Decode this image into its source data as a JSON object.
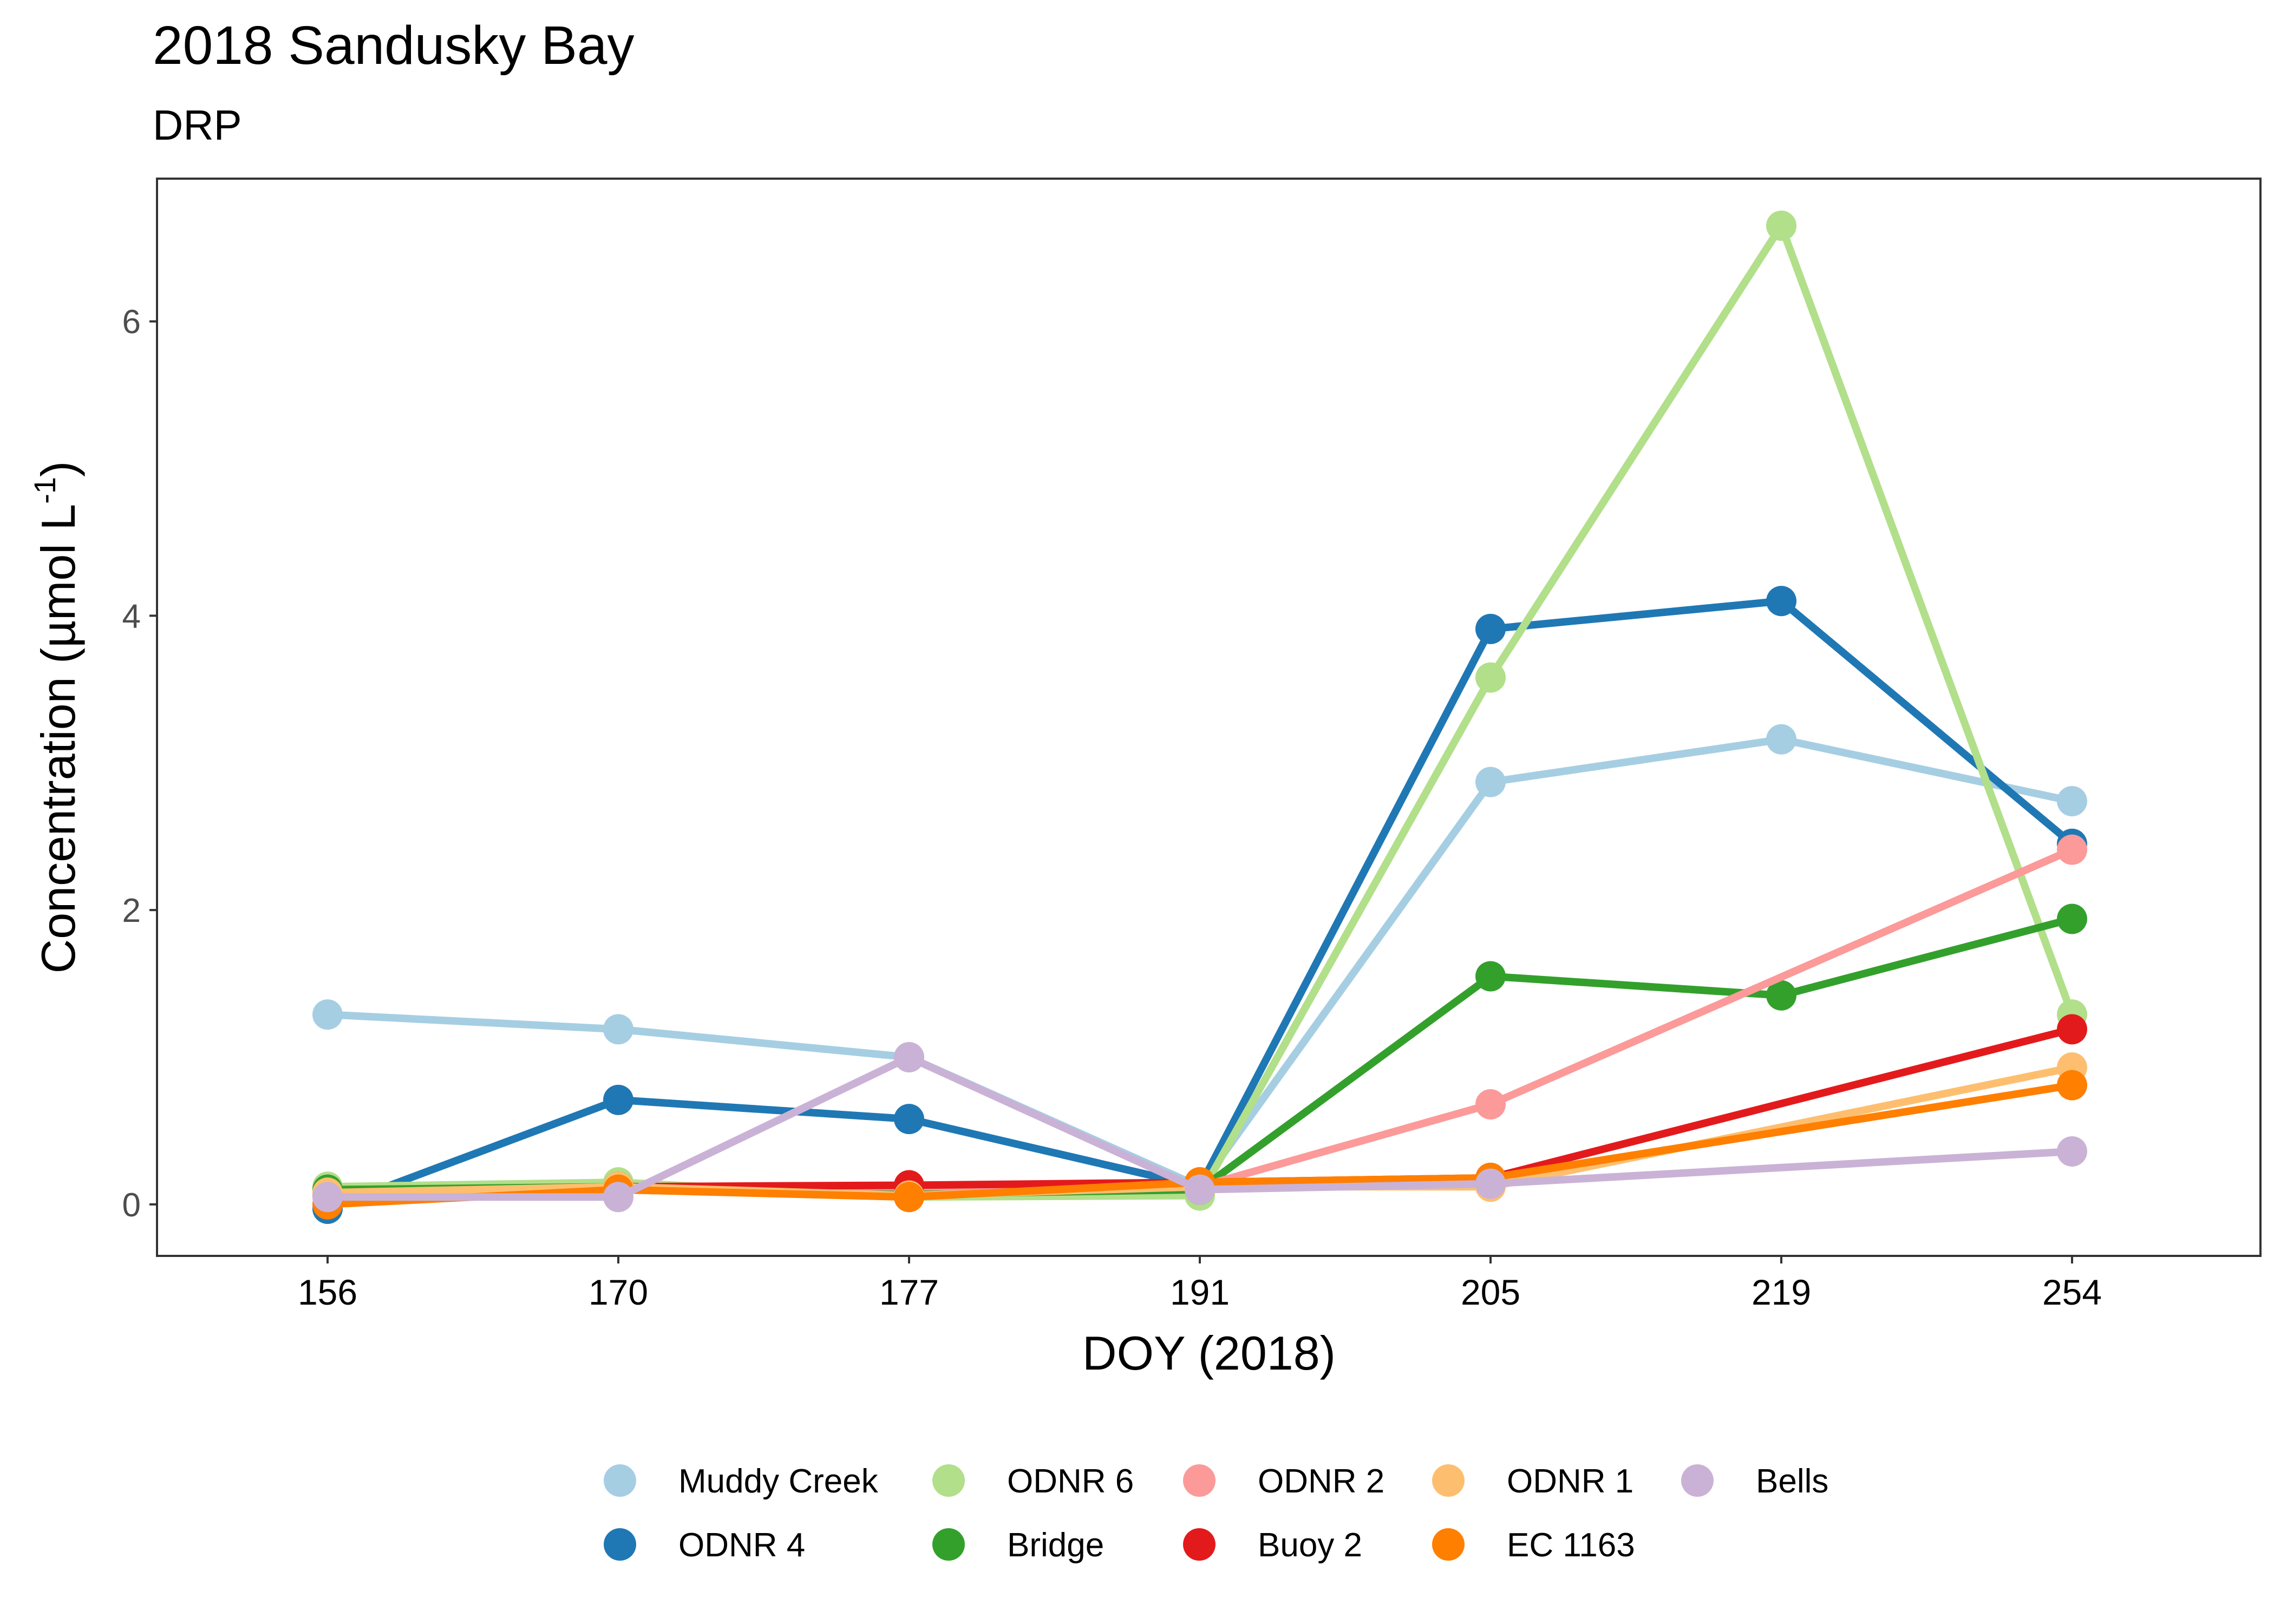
{
  "chart_data": {
    "type": "line",
    "title": "2018 Sandusky Bay",
    "subtitle": "DRP",
    "xlabel": "DOY (2018)",
    "ylabel": {
      "prefix": "Concentration (µmol L",
      "superscript": "-1",
      "suffix": ")"
    },
    "x": [
      "156",
      "170",
      "177",
      "191",
      "205",
      "219",
      "254"
    ],
    "ylim": [
      -0.35,
      6.97
    ],
    "yticks": [
      0,
      2,
      4,
      6
    ],
    "grid": false,
    "legend_position": "bottom",
    "series": [
      {
        "name": "Muddy Creek",
        "color": "#A6CEE3",
        "values": [
          1.29,
          1.19,
          1.0,
          0.12,
          2.87,
          3.16,
          2.74
        ]
      },
      {
        "name": "ODNR 4",
        "color": "#1F78B4",
        "values": [
          -0.03,
          0.71,
          0.58,
          0.12,
          3.91,
          4.1,
          2.45
        ]
      },
      {
        "name": "ODNR 6",
        "color": "#B2DF8A",
        "values": [
          0.12,
          0.15,
          0.05,
          0.06,
          3.58,
          6.65,
          1.29
        ]
      },
      {
        "name": "Bridge",
        "color": "#33A02C",
        "values": [
          0.1,
          0.12,
          0.07,
          0.1,
          1.55,
          1.42,
          1.94
        ]
      },
      {
        "name": "ODNR 2",
        "color": "#FB9A99",
        "values": [
          0.05,
          0.12,
          0.12,
          0.12,
          0.68,
          null,
          2.41
        ]
      },
      {
        "name": "Buoy 2",
        "color": "#E31A1C",
        "values": [
          0.07,
          0.12,
          0.13,
          0.15,
          0.18,
          null,
          1.19
        ]
      },
      {
        "name": "ODNR 1",
        "color": "#FDBF6F",
        "values": [
          0.08,
          0.12,
          0.06,
          0.12,
          0.12,
          null,
          0.93
        ]
      },
      {
        "name": "EC 1163",
        "color": "#FF7F00",
        "values": [
          0.0,
          0.1,
          0.05,
          0.15,
          0.18,
          null,
          0.81
        ]
      },
      {
        "name": "Bells",
        "color": "#CAB2D6",
        "values": [
          0.05,
          0.05,
          1.0,
          0.1,
          0.14,
          null,
          0.36
        ]
      }
    ]
  }
}
